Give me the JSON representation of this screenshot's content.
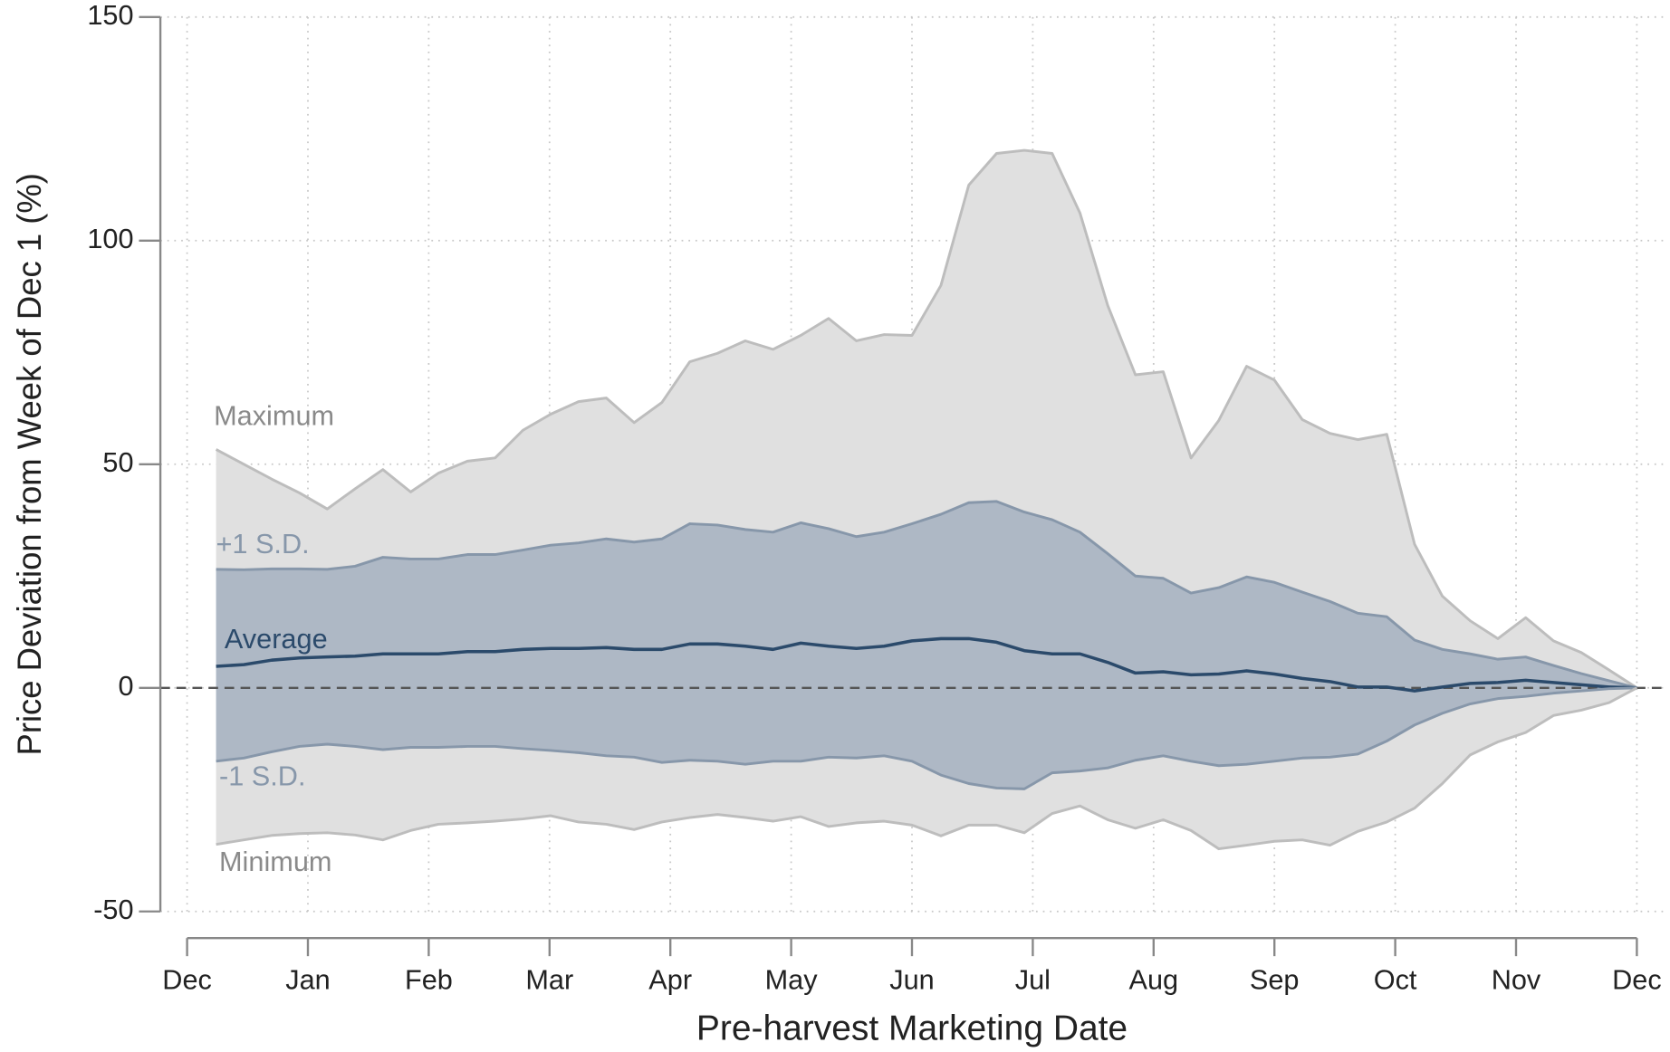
{
  "chart_data": {
    "type": "band",
    "xlabel": "Pre-harvest Marketing Date",
    "ylabel": "Price Deviation from Week of Dec 1 (%)",
    "xlim": [
      0,
      12
    ],
    "xticks": [
      {
        "value": 0,
        "label": "Dec"
      },
      {
        "value": 1,
        "label": "Jan"
      },
      {
        "value": 2,
        "label": "Feb"
      },
      {
        "value": 3,
        "label": "Mar"
      },
      {
        "value": 4,
        "label": "Apr"
      },
      {
        "value": 5,
        "label": "May"
      },
      {
        "value": 6,
        "label": "Jun"
      },
      {
        "value": 7,
        "label": "Jul"
      },
      {
        "value": 8,
        "label": "Aug"
      },
      {
        "value": 9,
        "label": "Sep"
      },
      {
        "value": 10,
        "label": "Oct"
      },
      {
        "value": 11,
        "label": "Nov"
      },
      {
        "value": 12,
        "label": "Dec"
      }
    ],
    "ylim": [
      -50,
      150
    ],
    "yticks": [
      -50,
      0,
      50,
      100,
      150
    ],
    "grid": true,
    "reference_line": 0,
    "x": [
      0.24,
      0.47,
      0.7,
      0.93,
      1.16,
      1.39,
      1.62,
      1.85,
      2.08,
      2.32,
      2.55,
      2.78,
      3.01,
      3.24,
      3.47,
      3.7,
      3.93,
      4.16,
      4.39,
      4.62,
      4.85,
      5.08,
      5.31,
      5.54,
      5.77,
      6.0,
      6.24,
      6.47,
      6.7,
      6.93,
      7.16,
      7.39,
      7.62,
      7.85,
      8.08,
      8.31,
      8.54,
      8.77,
      9.0,
      9.23,
      9.46,
      9.69,
      9.93,
      10.16,
      10.39,
      10.62,
      10.85,
      11.08,
      11.31,
      11.54,
      11.77,
      12.0
    ],
    "series": [
      {
        "name": "Maximum",
        "color": "#bdbdbd",
        "fill": "#e0e0e0",
        "label_color": "#8a8a8a",
        "values": [
          53.3,
          50,
          46.7,
          43.6,
          40,
          44.5,
          48.8,
          43.8,
          48,
          50.7,
          51.4,
          57.6,
          61.2,
          64,
          64.8,
          59.3,
          63.8,
          72.9,
          74.8,
          77.6,
          75.7,
          78.8,
          82.6,
          77.6,
          79,
          78.8,
          90,
          112.4,
          119.5,
          120.2,
          119.5,
          106.2,
          85.5,
          70,
          70.7,
          51.4,
          59.8,
          71.9,
          68.8,
          60,
          56.9,
          55.5,
          56.7,
          32.1,
          20.5,
          15,
          11,
          15.7,
          10.5,
          7.9,
          4,
          0
        ]
      },
      {
        "name": "+1 S.D.",
        "color": "#8797aa",
        "fill": "#aeb8c5",
        "label_color": "#8797aa",
        "values": [
          26.5,
          26.4,
          26.6,
          26.6,
          26.5,
          27.2,
          29.2,
          28.8,
          28.8,
          29.8,
          29.8,
          30.8,
          31.9,
          32.4,
          33.3,
          32.6,
          33.3,
          36.7,
          36.4,
          35.4,
          34.8,
          36.9,
          35.6,
          33.8,
          34.8,
          36.7,
          38.8,
          41.4,
          41.7,
          39.3,
          37.6,
          34.8,
          30,
          25,
          24.5,
          21.2,
          22.4,
          24.8,
          23.6,
          21.4,
          19.3,
          16.7,
          15.9,
          10.7,
          8.6,
          7.6,
          6.4,
          6.9,
          5,
          3.2,
          1.6,
          0
        ]
      },
      {
        "name": "Average",
        "color": "#2b4a6b",
        "label_color": "#2b4a6b",
        "values": [
          4.8,
          5.2,
          6.2,
          6.7,
          6.9,
          7.1,
          7.6,
          7.6,
          7.6,
          8.1,
          8.1,
          8.6,
          8.8,
          8.8,
          9,
          8.6,
          8.6,
          9.8,
          9.8,
          9.3,
          8.6,
          10,
          9.3,
          8.8,
          9.3,
          10.5,
          11,
          11,
          10.2,
          8.3,
          7.6,
          7.6,
          5.7,
          3.3,
          3.6,
          2.9,
          3.1,
          3.8,
          3.1,
          2.1,
          1.4,
          0.2,
          0.2,
          -0.7,
          0.2,
          1,
          1.2,
          1.7,
          1.2,
          0.7,
          0.2,
          0
        ]
      },
      {
        "name": "-1 S.D.",
        "color": "#8797aa",
        "label_color": "#8797aa",
        "values": [
          -16.4,
          -15.7,
          -14.3,
          -13.1,
          -12.6,
          -13.1,
          -13.8,
          -13.3,
          -13.3,
          -13.1,
          -13.1,
          -13.6,
          -14,
          -14.5,
          -15.2,
          -15.5,
          -16.7,
          -16.2,
          -16.4,
          -17.1,
          -16.4,
          -16.4,
          -15.5,
          -15.7,
          -15.2,
          -16.4,
          -19.5,
          -21.4,
          -22.4,
          -22.6,
          -19,
          -18.6,
          -17.9,
          -16.2,
          -15.2,
          -16.4,
          -17.4,
          -17.1,
          -16.4,
          -15.7,
          -15.5,
          -14.8,
          -11.9,
          -8.3,
          -5.7,
          -3.6,
          -2.4,
          -1.9,
          -1.2,
          -0.7,
          -0.2,
          0
        ]
      },
      {
        "name": "Minimum",
        "color": "#bdbdbd",
        "label_color": "#8a8a8a",
        "values": [
          -35,
          -34,
          -33,
          -32.6,
          -32.4,
          -32.9,
          -34,
          -31.9,
          -30.5,
          -30.2,
          -29.8,
          -29.3,
          -28.6,
          -30,
          -30.5,
          -31.7,
          -30,
          -29,
          -28.3,
          -29,
          -29.8,
          -28.8,
          -31,
          -30.2,
          -29.8,
          -30.7,
          -33.1,
          -30.7,
          -30.7,
          -32.4,
          -28.1,
          -26.4,
          -29.5,
          -31.4,
          -29.5,
          -31.9,
          -36,
          -35.2,
          -34.3,
          -34,
          -35.2,
          -32.1,
          -30,
          -26.9,
          -21.4,
          -15,
          -12.1,
          -10,
          -6.2,
          -5,
          -3.3,
          0
        ]
      }
    ]
  }
}
